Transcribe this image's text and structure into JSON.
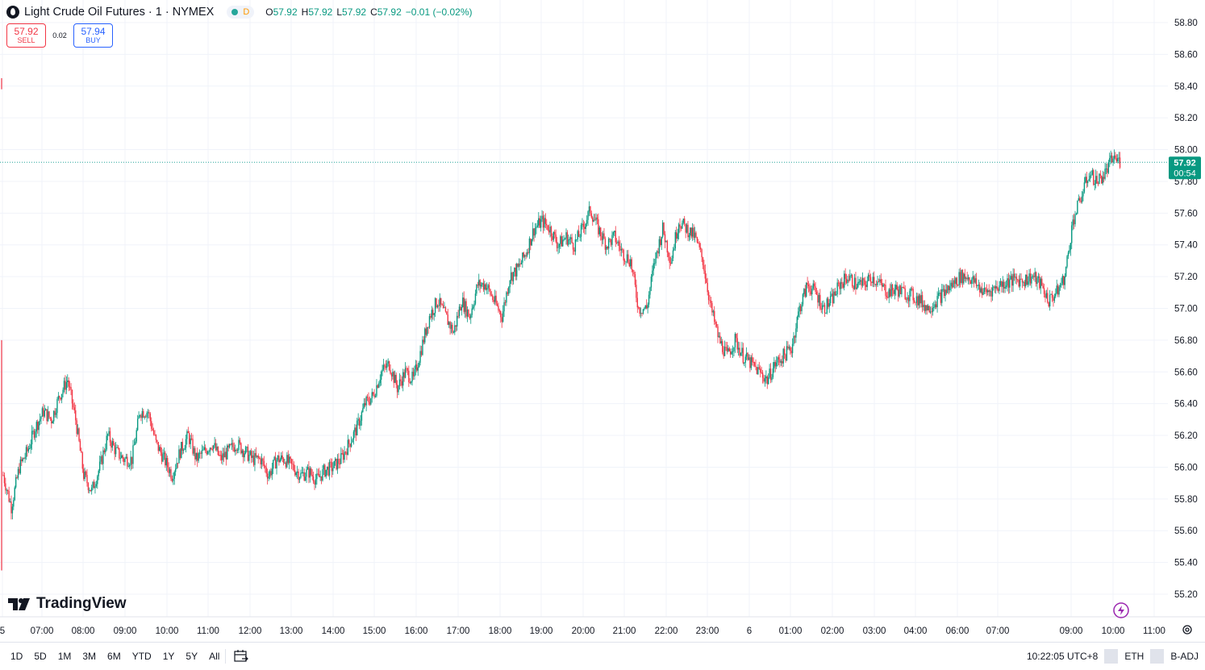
{
  "header": {
    "title": "Light Crude Oil Futures · 1 · NYMEX",
    "interval_badge": "D",
    "ohlc": {
      "o_label": "O",
      "o_value": "57.92",
      "h_label": "H",
      "h_value": "57.92",
      "l_label": "L",
      "l_value": "57.92",
      "c_label": "C",
      "c_value": "57.92",
      "change": "−0.01 (−0.02%)"
    }
  },
  "trade": {
    "sell_price": "57.92",
    "sell_label": "SELL",
    "spread": "0.02",
    "buy_price": "57.94",
    "buy_label": "BUY"
  },
  "price_badge": {
    "price": "57.92",
    "countdown": "00:54"
  },
  "logo_text": "TradingView",
  "colors": {
    "up": "#089981",
    "down": "#f23645",
    "price_line": "#26a69a",
    "grid": "#f0f3fa"
  },
  "chart_data": {
    "type": "candlestick",
    "title": "Light Crude Oil Futures · 1 · NYMEX",
    "xlabel": "",
    "ylabel": "",
    "ylim": [
      55.2,
      58.8
    ],
    "y_ticks": [
      "58.80",
      "58.60",
      "58.40",
      "58.20",
      "58.00",
      "57.80",
      "57.60",
      "57.40",
      "57.20",
      "57.00",
      "56.80",
      "56.60",
      "56.40",
      "56.20",
      "56.00",
      "55.80",
      "55.60",
      "55.40",
      "55.20"
    ],
    "x_ticks": [
      "5",
      "07:00",
      "08:00",
      "09:00",
      "10:00",
      "11:00",
      "12:00",
      "13:00",
      "14:00",
      "15:00",
      "16:00",
      "17:00",
      "18:00",
      "19:00",
      "20:00",
      "21:00",
      "22:00",
      "23:00",
      "6",
      "01:00",
      "02:00",
      "03:00",
      "04:00",
      "06:00",
      "07:00",
      "09:00",
      "10:00",
      "11:00"
    ],
    "last_price": 57.92,
    "path": [
      [
        "06:00",
        55.95
      ],
      [
        "06:10",
        55.75
      ],
      [
        "06:15",
        56.0
      ],
      [
        "06:25",
        56.1
      ],
      [
        "06:40",
        56.25
      ],
      [
        "06:50",
        56.35
      ],
      [
        "07:00",
        56.3
      ],
      [
        "07:10",
        56.45
      ],
      [
        "07:20",
        56.55
      ],
      [
        "07:30",
        56.3
      ],
      [
        "07:40",
        55.95
      ],
      [
        "07:50",
        55.85
      ],
      [
        "08:00",
        56.0
      ],
      [
        "08:10",
        56.2
      ],
      [
        "08:20",
        56.1
      ],
      [
        "08:30",
        56.05
      ],
      [
        "08:40",
        56.05
      ],
      [
        "08:50",
        56.35
      ],
      [
        "09:00",
        56.35
      ],
      [
        "09:10",
        56.15
      ],
      [
        "09:20",
        56.05
      ],
      [
        "09:30",
        55.95
      ],
      [
        "09:40",
        56.1
      ],
      [
        "09:50",
        56.2
      ],
      [
        "10:00",
        56.05
      ],
      [
        "10:10",
        56.1
      ],
      [
        "10:20",
        56.15
      ],
      [
        "10:30",
        56.05
      ],
      [
        "10:40",
        56.1
      ],
      [
        "10:50",
        56.15
      ],
      [
        "11:00",
        56.1
      ],
      [
        "11:10",
        56.05
      ],
      [
        "11:20",
        56.05
      ],
      [
        "11:30",
        55.95
      ],
      [
        "11:40",
        56.05
      ],
      [
        "11:50",
        56.05
      ],
      [
        "12:00",
        56.0
      ],
      [
        "12:10",
        55.95
      ],
      [
        "12:20",
        55.97
      ],
      [
        "12:30",
        55.92
      ],
      [
        "12:40",
        55.98
      ],
      [
        "12:50",
        56.0
      ],
      [
        "13:00",
        56.05
      ],
      [
        "13:10",
        56.15
      ],
      [
        "13:20",
        56.25
      ],
      [
        "13:30",
        56.4
      ],
      [
        "13:40",
        56.45
      ],
      [
        "13:50",
        56.6
      ],
      [
        "14:00",
        56.65
      ],
      [
        "14:10",
        56.5
      ],
      [
        "14:20",
        56.6
      ],
      [
        "14:30",
        56.55
      ],
      [
        "14:40",
        56.75
      ],
      [
        "14:50",
        56.95
      ],
      [
        "15:00",
        57.05
      ],
      [
        "15:10",
        56.95
      ],
      [
        "15:20",
        56.85
      ],
      [
        "15:30",
        57.05
      ],
      [
        "15:40",
        56.95
      ],
      [
        "15:50",
        57.15
      ],
      [
        "16:00",
        57.15
      ],
      [
        "16:10",
        57.05
      ],
      [
        "16:20",
        56.95
      ],
      [
        "16:30",
        57.2
      ],
      [
        "16:40",
        57.25
      ],
      [
        "16:50",
        57.35
      ],
      [
        "17:00",
        57.5
      ],
      [
        "17:10",
        57.55
      ],
      [
        "17:20",
        57.5
      ],
      [
        "17:30",
        57.4
      ],
      [
        "17:40",
        57.45
      ],
      [
        "17:50",
        57.4
      ],
      [
        "18:00",
        57.5
      ],
      [
        "18:10",
        57.62
      ],
      [
        "18:20",
        57.5
      ],
      [
        "18:30",
        57.4
      ],
      [
        "18:40",
        57.45
      ],
      [
        "18:50",
        57.35
      ],
      [
        "19:00",
        57.3
      ],
      [
        "19:10",
        57.0
      ],
      [
        "19:20",
        57.0
      ],
      [
        "19:30",
        57.3
      ],
      [
        "19:40",
        57.5
      ],
      [
        "19:50",
        57.3
      ],
      [
        "20:00",
        57.55
      ],
      [
        "20:10",
        57.5
      ],
      [
        "20:20",
        57.45
      ],
      [
        "20:30",
        57.3
      ],
      [
        "20:40",
        57.0
      ],
      [
        "20:50",
        56.8
      ],
      [
        "21:00",
        56.7
      ],
      [
        "21:10",
        56.8
      ],
      [
        "21:20",
        56.7
      ],
      [
        "21:30",
        56.65
      ],
      [
        "21:40",
        56.6
      ],
      [
        "21:50",
        56.55
      ],
      [
        "22:00",
        56.65
      ],
      [
        "22:10",
        56.7
      ],
      [
        "22:20",
        56.75
      ],
      [
        "22:30",
        57.0
      ],
      [
        "22:40",
        57.15
      ],
      [
        "22:50",
        57.1
      ],
      [
        "23:00",
        57.0
      ],
      [
        "23:10",
        57.05
      ],
      [
        "23:20",
        57.15
      ],
      [
        "23:30",
        57.2
      ],
      [
        "23:40",
        57.15
      ],
      [
        "23:50",
        57.15
      ],
      [
        "00:00",
        57.2
      ],
      [
        "00:10",
        57.15
      ],
      [
        "00:20",
        57.1
      ],
      [
        "00:30",
        57.12
      ],
      [
        "00:40",
        57.1
      ],
      [
        "00:50",
        57.08
      ],
      [
        "01:00",
        57.05
      ],
      [
        "01:10",
        57.0
      ],
      [
        "01:20",
        57.05
      ],
      [
        "01:30",
        57.1
      ],
      [
        "01:40",
        57.15
      ],
      [
        "01:50",
        57.2
      ],
      [
        "02:00",
        57.2
      ],
      [
        "02:10",
        57.15
      ],
      [
        "02:20",
        57.1
      ],
      [
        "02:30",
        57.12
      ],
      [
        "02:40",
        57.15
      ],
      [
        "02:50",
        57.17
      ],
      [
        "03:00",
        57.18
      ],
      [
        "03:10",
        57.18
      ],
      [
        "03:20",
        57.2
      ],
      [
        "03:30",
        57.15
      ],
      [
        "03:40",
        57.05
      ],
      [
        "03:50",
        57.1
      ],
      [
        "04:00",
        57.2
      ],
      [
        "04:10",
        57.55
      ],
      [
        "04:20",
        57.7
      ],
      [
        "04:30",
        57.85
      ],
      [
        "04:40",
        57.8
      ],
      [
        "04:50",
        57.85
      ],
      [
        "05:00",
        57.95
      ],
      [
        "05:10",
        57.92
      ]
    ]
  },
  "bottom_bar": {
    "ranges": [
      "1D",
      "5D",
      "1M",
      "3M",
      "6M",
      "YTD",
      "1Y",
      "5Y",
      "All"
    ],
    "clock": "10:22:05 UTC+8",
    "session": "ETH",
    "adjustment": "B-ADJ"
  }
}
